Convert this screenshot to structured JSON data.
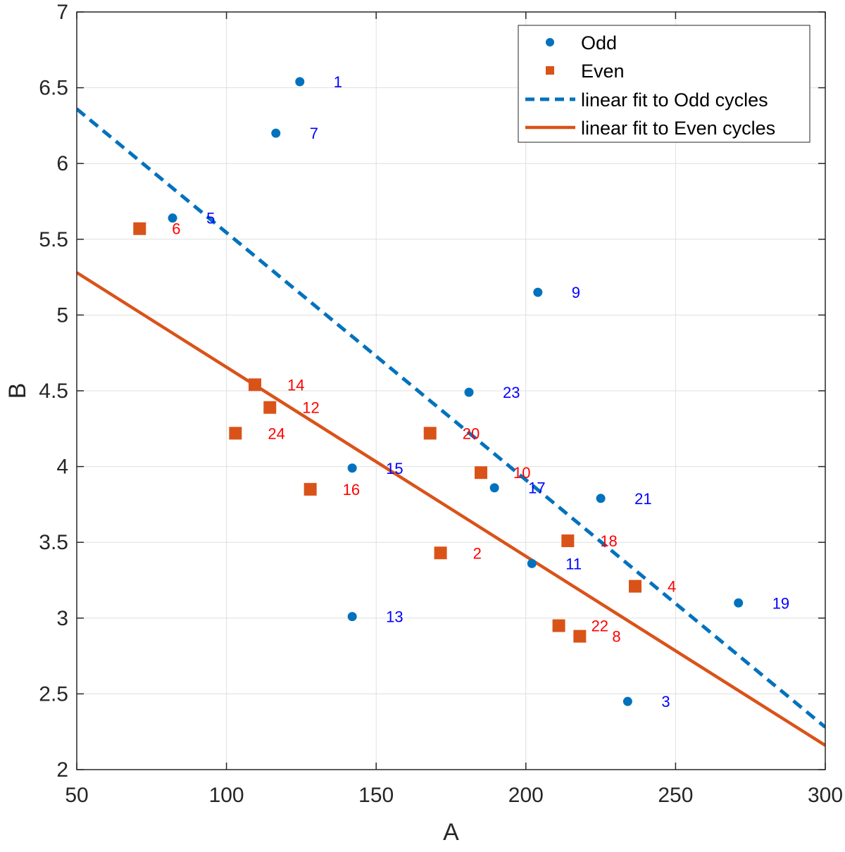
{
  "chart_data": {
    "type": "scatter",
    "xlabel": "A",
    "ylabel": "B",
    "xlim": [
      50,
      300
    ],
    "ylim": [
      2,
      7
    ],
    "xticks": [
      50,
      100,
      150,
      200,
      250,
      300
    ],
    "yticks": [
      2,
      2.5,
      3,
      3.5,
      4,
      4.5,
      5,
      5.5,
      6,
      6.5,
      7
    ],
    "grid": true,
    "legend_position": "top-right",
    "colors": {
      "odd": "#0072BD",
      "even": "#D95319",
      "odd_label": "#0000FF",
      "even_label": "#FF0000"
    },
    "series": [
      {
        "name": "Odd",
        "marker": "circle",
        "points": [
          {
            "x": 124.5,
            "y": 6.54,
            "label": "1"
          },
          {
            "x": 234,
            "y": 2.45,
            "label": "3"
          },
          {
            "x": 82,
            "y": 5.64,
            "label": "5"
          },
          {
            "x": 116.5,
            "y": 6.2,
            "label": "7"
          },
          {
            "x": 204,
            "y": 5.15,
            "label": "9"
          },
          {
            "x": 202,
            "y": 3.36,
            "label": "11"
          },
          {
            "x": 142,
            "y": 3.01,
            "label": "13"
          },
          {
            "x": 142,
            "y": 3.99,
            "label": "15"
          },
          {
            "x": 189.5,
            "y": 3.86,
            "label": "17"
          },
          {
            "x": 271,
            "y": 3.1,
            "label": "19"
          },
          {
            "x": 225,
            "y": 3.79,
            "label": "21"
          },
          {
            "x": 181,
            "y": 4.49,
            "label": "23"
          }
        ]
      },
      {
        "name": "Even",
        "marker": "square",
        "points": [
          {
            "x": 171.5,
            "y": 3.43,
            "label": "2"
          },
          {
            "x": 236.5,
            "y": 3.21,
            "label": "4"
          },
          {
            "x": 71,
            "y": 5.57,
            "label": "6"
          },
          {
            "x": 218,
            "y": 2.88,
            "label": "8"
          },
          {
            "x": 185,
            "y": 3.96,
            "label": "10"
          },
          {
            "x": 114.5,
            "y": 4.39,
            "label": "12"
          },
          {
            "x": 109.5,
            "y": 4.54,
            "label": "14"
          },
          {
            "x": 128,
            "y": 3.85,
            "label": "16"
          },
          {
            "x": 214,
            "y": 3.51,
            "label": "18"
          },
          {
            "x": 168,
            "y": 4.22,
            "label": "20"
          },
          {
            "x": 211,
            "y": 2.95,
            "label": "22"
          },
          {
            "x": 103,
            "y": 4.22,
            "label": "24"
          }
        ]
      }
    ],
    "fits": [
      {
        "name": "linear fit to Odd cycles",
        "style": "dashed",
        "color_key": "odd",
        "x": [
          50,
          300
        ],
        "y": [
          6.36,
          2.28
        ]
      },
      {
        "name": "linear fit to Even cycles",
        "style": "solid",
        "color_key": "even",
        "x": [
          50,
          300
        ],
        "y": [
          5.28,
          2.16
        ]
      }
    ]
  }
}
